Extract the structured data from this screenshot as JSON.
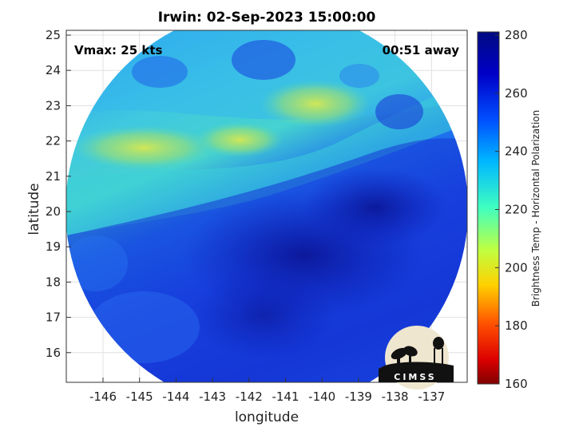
{
  "title": "Irwin: 02-Sep-2023 15:00:00",
  "annotations": {
    "vmax": "Vmax: 25 kts",
    "away": "00:51 away"
  },
  "axes": {
    "xlabel": "longitude",
    "ylabel": "latitude",
    "x_ticks": [
      "-146",
      "-145",
      "-144",
      "-143",
      "-142",
      "-141",
      "-140",
      "-139",
      "-138",
      "-137"
    ],
    "y_ticks": [
      "25",
      "24",
      "23",
      "22",
      "21",
      "20",
      "19",
      "18",
      "17",
      "16"
    ]
  },
  "colorbar": {
    "label": "Brightness Temp - Horizontal Polarization",
    "ticks": [
      "280",
      "260",
      "240",
      "220",
      "200",
      "180",
      "160"
    ],
    "colormap": "jet-reversed"
  },
  "logo": {
    "text": "CIMSS"
  },
  "colors": {
    "deep": "#0b1aa8",
    "mid": "#1e63ee",
    "cyan": "#27c8e8",
    "yellow": "#d9e84a"
  }
}
